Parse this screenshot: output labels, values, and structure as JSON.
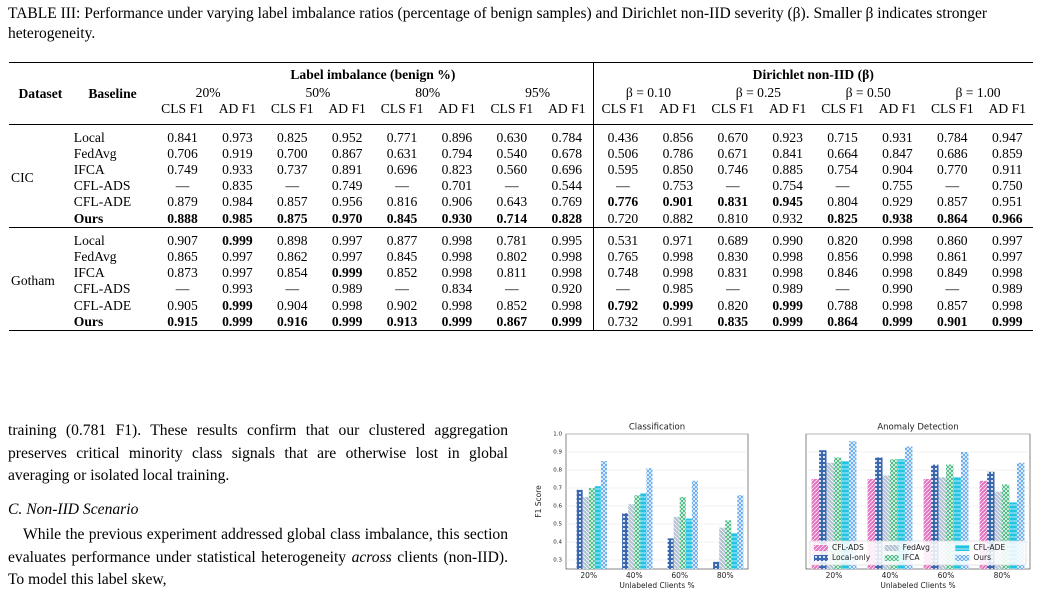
{
  "table": {
    "caption": "TABLE III: Performance under varying label imbalance ratios (percentage of benign samples) and Dirichlet non-IID severity (β). Smaller β indicates stronger heterogeneity.",
    "columns": {
      "dataset": "Dataset",
      "baseline": "Baseline",
      "spanners": [
        "Label imbalance (benign %)",
        "Dirichlet non-IID (β)"
      ],
      "groups": [
        "20%",
        "50%",
        "80%",
        "95%",
        "β = 0.10",
        "β = 0.25",
        "β = 0.50",
        "β = 1.00"
      ],
      "metrics": [
        "CLS F1",
        "AD F1",
        "CLS F1",
        "AD F1",
        "CLS F1",
        "AD F1",
        "CLS F1",
        "AD F1",
        "CLS F1",
        "AD F1",
        "CLS F1",
        "AD F1",
        "CLS F1",
        "AD F1",
        "CLS F1",
        "AD F1"
      ]
    },
    "sections": [
      {
        "dataset": "CIC",
        "rows": [
          {
            "baseline": "Local",
            "cells": [
              "0.841",
              "0.973",
              "0.825",
              "0.952",
              "0.771",
              "0.896",
              "0.630",
              "0.784",
              "0.436",
              "0.856",
              "0.670",
              "0.923",
              "0.715",
              "0.931",
              "0.784",
              "0.947"
            ]
          },
          {
            "baseline": "FedAvg",
            "cells": [
              "0.706",
              "0.919",
              "0.700",
              "0.867",
              "0.631",
              "0.794",
              "0.540",
              "0.678",
              "0.506",
              "0.786",
              "0.671",
              "0.841",
              "0.664",
              "0.847",
              "0.686",
              "0.859"
            ]
          },
          {
            "baseline": "IFCA",
            "cells": [
              "0.749",
              "0.933",
              "0.737",
              "0.891",
              "0.696",
              "0.823",
              "0.560",
              "0.696",
              "0.595",
              "0.850",
              "0.746",
              "0.885",
              "0.754",
              "0.904",
              "0.770",
              "0.911"
            ]
          },
          {
            "baseline": "CFL-ADS",
            "cells": [
              "—",
              "0.835",
              "—",
              "0.749",
              "—",
              "0.701",
              "—",
              "0.544",
              "—",
              "0.753",
              "—",
              "0.754",
              "—",
              "0.755",
              "—",
              "0.750"
            ]
          },
          {
            "baseline": "CFL-ADE",
            "cells": [
              "0.879",
              "0.984",
              "0.857",
              "0.956",
              "0.816",
              "0.906",
              "0.643",
              "0.769",
              "0.776",
              "0.901",
              "0.831",
              "0.945",
              "0.804",
              "0.929",
              "0.857",
              "0.951"
            ],
            "bold": [
              8,
              9,
              10,
              11
            ]
          },
          {
            "baseline": "Ours",
            "bold_baseline": true,
            "cells": [
              "0.888",
              "0.985",
              "0.875",
              "0.970",
              "0.845",
              "0.930",
              "0.714",
              "0.828",
              "0.720",
              "0.882",
              "0.810",
              "0.932",
              "0.825",
              "0.938",
              "0.864",
              "0.966"
            ],
            "bold": [
              0,
              1,
              2,
              3,
              4,
              5,
              6,
              7,
              12,
              13,
              14,
              15
            ]
          }
        ]
      },
      {
        "dataset": "Gotham",
        "rows": [
          {
            "baseline": "Local",
            "cells": [
              "0.907",
              "0.999",
              "0.898",
              "0.997",
              "0.877",
              "0.998",
              "0.781",
              "0.995",
              "0.531",
              "0.971",
              "0.689",
              "0.990",
              "0.820",
              "0.998",
              "0.860",
              "0.997"
            ],
            "bold": [
              1
            ]
          },
          {
            "baseline": "FedAvg",
            "cells": [
              "0.865",
              "0.997",
              "0.862",
              "0.997",
              "0.845",
              "0.998",
              "0.802",
              "0.998",
              "0.765",
              "0.998",
              "0.830",
              "0.998",
              "0.856",
              "0.998",
              "0.861",
              "0.997"
            ]
          },
          {
            "baseline": "IFCA",
            "cells": [
              "0.873",
              "0.997",
              "0.854",
              "0.999",
              "0.852",
              "0.998",
              "0.811",
              "0.998",
              "0.748",
              "0.998",
              "0.831",
              "0.998",
              "0.846",
              "0.998",
              "0.849",
              "0.998"
            ],
            "bold": [
              3
            ]
          },
          {
            "baseline": "CFL-ADS",
            "cells": [
              "—",
              "0.993",
              "—",
              "0.989",
              "—",
              "0.834",
              "—",
              "0.920",
              "—",
              "0.985",
              "—",
              "0.989",
              "—",
              "0.990",
              "—",
              "0.989"
            ]
          },
          {
            "baseline": "CFL-ADE",
            "cells": [
              "0.905",
              "0.999",
              "0.904",
              "0.998",
              "0.902",
              "0.998",
              "0.852",
              "0.998",
              "0.792",
              "0.999",
              "0.820",
              "0.999",
              "0.788",
              "0.998",
              "0.857",
              "0.998"
            ],
            "bold": [
              1,
              8,
              9,
              11
            ]
          },
          {
            "baseline": "Ours",
            "bold_baseline": true,
            "cells": [
              "0.915",
              "0.999",
              "0.916",
              "0.999",
              "0.913",
              "0.999",
              "0.867",
              "0.999",
              "0.732",
              "0.991",
              "0.835",
              "0.999",
              "0.864",
              "0.999",
              "0.901",
              "0.999"
            ],
            "bold": [
              0,
              1,
              2,
              3,
              4,
              5,
              6,
              7,
              10,
              11,
              12,
              13,
              14,
              15
            ]
          }
        ]
      }
    ]
  },
  "body": {
    "paragraph1": "training (0.781 F1). These results confirm that our clustered aggregation preserves critical minority class signals that are otherwise lost in global averaging or isolated local training.",
    "heading": "C. Non-IID Scenario",
    "paragraph2": [
      "While the previous experiment addressed global class imbalance, this section evaluates performance under statistical heterogeneity ",
      "across",
      " clients (non-IID). To model this label skew,"
    ]
  },
  "chart_data": [
    {
      "type": "bar",
      "title": "Classification",
      "xlabel": "Unlabeled Clients %",
      "ylabel": "F1 Score",
      "categories": [
        "20%",
        "40%",
        "60%",
        "80%"
      ],
      "ylim": [
        0.25,
        1.0
      ],
      "yticks": [
        0.3,
        0.4,
        0.5,
        0.6,
        0.7,
        0.8,
        0.9,
        {
          "value": 1.0,
          "label": "1.0"
        }
      ],
      "grid": true,
      "series": [
        {
          "name": "CFL-ADS",
          "color": "#e377c2",
          "values": [
            null,
            null,
            null,
            null
          ]
        },
        {
          "name": "Local-only",
          "color": "#3a68b0",
          "values": [
            0.69,
            0.56,
            0.42,
            0.29
          ]
        },
        {
          "name": "FedAvg",
          "color": "#b4c3d3",
          "values": [
            0.65,
            0.61,
            0.54,
            0.48
          ]
        },
        {
          "name": "IFCA",
          "color": "#3db57a",
          "values": [
            0.7,
            0.66,
            0.65,
            0.52
          ]
        },
        {
          "name": "CFL-ADE",
          "color": "#22c3e3",
          "values": [
            0.71,
            0.67,
            0.53,
            0.45
          ]
        },
        {
          "name": "Ours",
          "color": "#5aa6ee",
          "values": [
            0.85,
            0.81,
            0.74,
            0.66
          ]
        }
      ]
    },
    {
      "type": "bar",
      "title": "Anomaly Detection",
      "xlabel": "Unlabeled Clients %",
      "categories": [
        "20%",
        "40%",
        "60%",
        "80%"
      ],
      "ylim": [
        0.25,
        1.0
      ],
      "grid": true,
      "legend": "lower center",
      "series": [
        {
          "name": "CFL-ADS",
          "color": "#e377c2",
          "values": [
            0.75,
            0.75,
            0.75,
            0.74
          ]
        },
        {
          "name": "Local-only",
          "color": "#3a68b0",
          "values": [
            0.91,
            0.87,
            0.83,
            0.79
          ]
        },
        {
          "name": "FedAvg",
          "color": "#b4c3d3",
          "values": [
            0.84,
            0.77,
            0.76,
            0.68
          ]
        },
        {
          "name": "IFCA",
          "color": "#3db57a",
          "values": [
            0.87,
            0.86,
            0.83,
            0.72
          ]
        },
        {
          "name": "CFL-ADE",
          "color": "#22c3e3",
          "values": [
            0.85,
            0.86,
            0.76,
            0.62
          ]
        },
        {
          "name": "Ours",
          "color": "#5aa6ee",
          "values": [
            0.96,
            0.93,
            0.9,
            0.84
          ]
        }
      ]
    }
  ]
}
